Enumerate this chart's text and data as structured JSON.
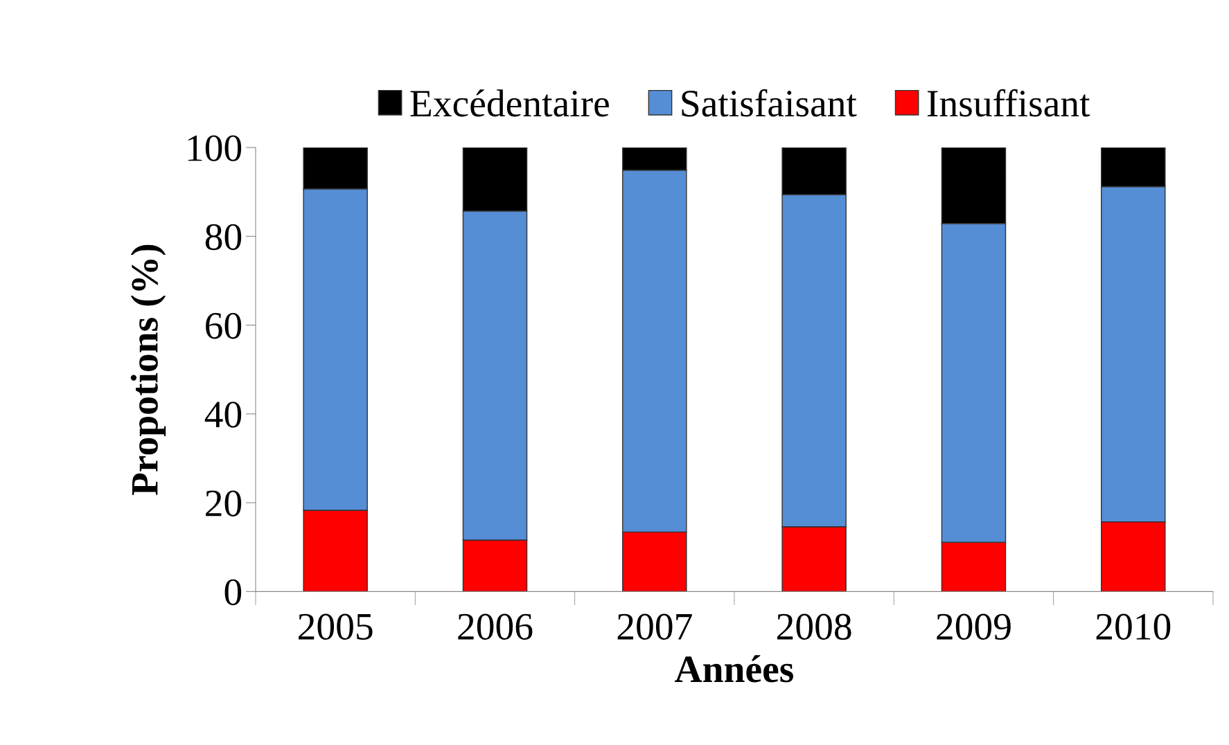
{
  "chart_data": {
    "type": "bar",
    "stacked": true,
    "xlabel": "Années",
    "ylabel": "Propotions (%)",
    "categories": [
      "2005",
      "2006",
      "2007",
      "2008",
      "2009",
      "2010"
    ],
    "series": [
      {
        "name": "Insuffisant",
        "color": "#ff0000",
        "values": [
          18.3,
          11.6,
          13.4,
          14.6,
          11.1,
          15.7
        ]
      },
      {
        "name": "Satisfaisant",
        "color": "#558ed5",
        "values": [
          72.4,
          74.1,
          81.5,
          74.8,
          71.8,
          75.5
        ]
      },
      {
        "name": "Excédentaire",
        "color": "#000000",
        "values": [
          9.3,
          14.3,
          5.1,
          10.6,
          17.1,
          8.8
        ]
      }
    ],
    "ylim": [
      0,
      100
    ],
    "yticks": [
      0,
      20,
      40,
      60,
      80,
      100
    ],
    "grid": false,
    "legend": "top"
  }
}
